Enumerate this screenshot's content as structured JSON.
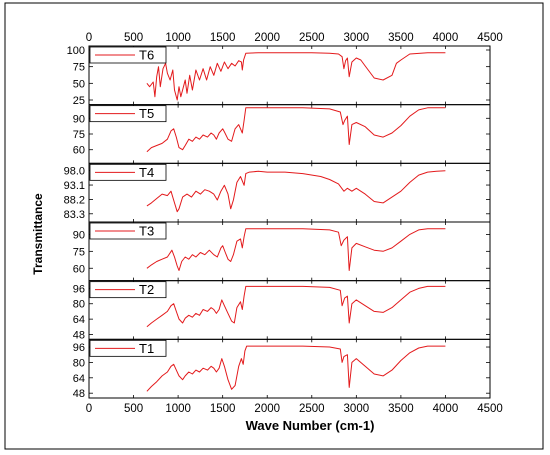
{
  "chart_data": {
    "type": "line",
    "xlabel": "Wave Number (cm-1)",
    "ylabel": "Transmittance",
    "xlim": [
      0,
      4500
    ],
    "x_ticks": [
      "0",
      "500",
      "1000",
      "1500",
      "2000",
      "2500",
      "3000",
      "3500",
      "4000",
      "4500"
    ],
    "line_color": "#e31a1c",
    "panels": [
      {
        "name": "T6",
        "ylim": [
          18,
          106
        ],
        "y_ticks": [
          "100",
          "75",
          "50",
          "25"
        ],
        "y_tick_values": [
          100,
          75,
          50,
          25
        ],
        "points": [
          [
            650,
            50
          ],
          [
            680,
            45
          ],
          [
            720,
            52
          ],
          [
            740,
            30
          ],
          [
            760,
            60
          ],
          [
            780,
            75
          ],
          [
            800,
            45
          ],
          [
            830,
            72
          ],
          [
            860,
            80
          ],
          [
            880,
            65
          ],
          [
            910,
            55
          ],
          [
            940,
            70
          ],
          [
            960,
            40
          ],
          [
            990,
            25
          ],
          [
            1010,
            45
          ],
          [
            1030,
            30
          ],
          [
            1050,
            40
          ],
          [
            1080,
            55
          ],
          [
            1100,
            35
          ],
          [
            1130,
            62
          ],
          [
            1160,
            40
          ],
          [
            1200,
            70
          ],
          [
            1240,
            55
          ],
          [
            1280,
            72
          ],
          [
            1320,
            55
          ],
          [
            1360,
            75
          ],
          [
            1400,
            62
          ],
          [
            1440,
            80
          ],
          [
            1480,
            68
          ],
          [
            1520,
            82
          ],
          [
            1560,
            72
          ],
          [
            1600,
            80
          ],
          [
            1640,
            76
          ],
          [
            1680,
            84
          ],
          [
            1710,
            82
          ],
          [
            1720,
            70
          ],
          [
            1735,
            85
          ],
          [
            1760,
            95
          ],
          [
            1900,
            96
          ],
          [
            2200,
            96
          ],
          [
            2500,
            96
          ],
          [
            2700,
            95
          ],
          [
            2800,
            94
          ],
          [
            2840,
            90
          ],
          [
            2860,
            72
          ],
          [
            2880,
            84
          ],
          [
            2900,
            88
          ],
          [
            2920,
            60
          ],
          [
            2950,
            82
          ],
          [
            3000,
            88
          ],
          [
            3050,
            85
          ],
          [
            3100,
            76
          ],
          [
            3200,
            58
          ],
          [
            3300,
            55
          ],
          [
            3400,
            62
          ],
          [
            3450,
            80
          ],
          [
            3500,
            85
          ],
          [
            3600,
            94
          ],
          [
            3800,
            96
          ],
          [
            4000,
            96
          ]
        ]
      },
      {
        "name": "T5",
        "ylim": [
          47,
          103
        ],
        "y_ticks": [
          "90",
          "75",
          "60"
        ],
        "y_tick_values": [
          90,
          75,
          60
        ],
        "points": [
          [
            650,
            58
          ],
          [
            700,
            62
          ],
          [
            760,
            64
          ],
          [
            820,
            66
          ],
          [
            880,
            70
          ],
          [
            920,
            78
          ],
          [
            950,
            80
          ],
          [
            980,
            72
          ],
          [
            1010,
            62
          ],
          [
            1050,
            60
          ],
          [
            1080,
            64
          ],
          [
            1120,
            70
          ],
          [
            1160,
            68
          ],
          [
            1200,
            72
          ],
          [
            1240,
            70
          ],
          [
            1280,
            74
          ],
          [
            1330,
            72
          ],
          [
            1370,
            76
          ],
          [
            1400,
            74
          ],
          [
            1430,
            70
          ],
          [
            1460,
            76
          ],
          [
            1500,
            80
          ],
          [
            1520,
            77
          ],
          [
            1560,
            70
          ],
          [
            1600,
            68
          ],
          [
            1640,
            80
          ],
          [
            1680,
            84
          ],
          [
            1720,
            76
          ],
          [
            1740,
            88
          ],
          [
            1760,
            100
          ],
          [
            2000,
            100
          ],
          [
            2400,
            100
          ],
          [
            2700,
            99
          ],
          [
            2820,
            96
          ],
          [
            2850,
            84
          ],
          [
            2870,
            88
          ],
          [
            2900,
            92
          ],
          [
            2920,
            65
          ],
          [
            2950,
            84
          ],
          [
            3000,
            86
          ],
          [
            3100,
            82
          ],
          [
            3200,
            74
          ],
          [
            3300,
            72
          ],
          [
            3400,
            76
          ],
          [
            3500,
            83
          ],
          [
            3600,
            92
          ],
          [
            3700,
            98
          ],
          [
            3800,
            100
          ],
          [
            4000,
            100
          ]
        ]
      },
      {
        "name": "T4",
        "ylim": [
          80.5,
          100.5
        ],
        "y_ticks": [
          "98.0",
          "93.1",
          "88.2",
          "83.3"
        ],
        "y_tick_values": [
          98.0,
          93.1,
          88.2,
          83.3
        ],
        "points": [
          [
            650,
            86
          ],
          [
            700,
            87
          ],
          [
            760,
            88.5
          ],
          [
            820,
            90
          ],
          [
            880,
            89.5
          ],
          [
            920,
            91
          ],
          [
            960,
            87
          ],
          [
            990,
            84
          ],
          [
            1010,
            85
          ],
          [
            1050,
            89
          ],
          [
            1100,
            90
          ],
          [
            1150,
            89
          ],
          [
            1200,
            91
          ],
          [
            1250,
            90
          ],
          [
            1300,
            91.5
          ],
          [
            1350,
            91
          ],
          [
            1400,
            90
          ],
          [
            1440,
            88
          ],
          [
            1480,
            91
          ],
          [
            1520,
            93
          ],
          [
            1560,
            90
          ],
          [
            1590,
            85
          ],
          [
            1620,
            88
          ],
          [
            1660,
            94
          ],
          [
            1700,
            96
          ],
          [
            1740,
            93
          ],
          [
            1760,
            97
          ],
          [
            1800,
            97.5
          ],
          [
            1900,
            97.8
          ],
          [
            2000,
            97.5
          ],
          [
            2200,
            97.5
          ],
          [
            2400,
            97
          ],
          [
            2600,
            96
          ],
          [
            2700,
            95
          ],
          [
            2800,
            93.5
          ],
          [
            2860,
            91
          ],
          [
            2900,
            92
          ],
          [
            2950,
            91
          ],
          [
            3000,
            92
          ],
          [
            3100,
            90
          ],
          [
            3200,
            87.5
          ],
          [
            3300,
            87
          ],
          [
            3400,
            89
          ],
          [
            3500,
            91
          ],
          [
            3600,
            94
          ],
          [
            3700,
            96.5
          ],
          [
            3800,
            97.5
          ],
          [
            3900,
            97.8
          ],
          [
            4000,
            98
          ]
        ]
      },
      {
        "name": "T3",
        "ylim": [
          49,
          101
        ],
        "y_ticks": [
          "90",
          "75",
          "60"
        ],
        "y_tick_values": [
          90,
          75,
          60
        ],
        "points": [
          [
            650,
            60
          ],
          [
            700,
            63
          ],
          [
            760,
            66
          ],
          [
            820,
            68
          ],
          [
            880,
            70
          ],
          [
            930,
            76
          ],
          [
            960,
            70
          ],
          [
            990,
            62
          ],
          [
            1010,
            58
          ],
          [
            1040,
            66
          ],
          [
            1080,
            70
          ],
          [
            1120,
            68
          ],
          [
            1160,
            72
          ],
          [
            1200,
            70
          ],
          [
            1250,
            74
          ],
          [
            1300,
            72
          ],
          [
            1350,
            76
          ],
          [
            1400,
            72
          ],
          [
            1440,
            70
          ],
          [
            1480,
            78
          ],
          [
            1500,
            80
          ],
          [
            1530,
            74
          ],
          [
            1560,
            68
          ],
          [
            1590,
            66
          ],
          [
            1620,
            72
          ],
          [
            1660,
            84
          ],
          [
            1700,
            86
          ],
          [
            1720,
            78
          ],
          [
            1740,
            88
          ],
          [
            1760,
            95
          ],
          [
            2000,
            95
          ],
          [
            2400,
            95
          ],
          [
            2700,
            94
          ],
          [
            2800,
            92
          ],
          [
            2830,
            80
          ],
          [
            2860,
            85
          ],
          [
            2900,
            88
          ],
          [
            2920,
            58
          ],
          [
            2950,
            78
          ],
          [
            3000,
            82
          ],
          [
            3100,
            79
          ],
          [
            3200,
            76
          ],
          [
            3300,
            75
          ],
          [
            3400,
            78
          ],
          [
            3500,
            84
          ],
          [
            3600,
            90
          ],
          [
            3700,
            94
          ],
          [
            3800,
            95
          ],
          [
            4000,
            95
          ]
        ]
      },
      {
        "name": "T2",
        "ylim": [
          43,
          104
        ],
        "y_ticks": [
          "96",
          "80",
          "64",
          "48"
        ],
        "y_tick_values": [
          96,
          80,
          64,
          48
        ],
        "points": [
          [
            650,
            56
          ],
          [
            700,
            60
          ],
          [
            760,
            64
          ],
          [
            820,
            68
          ],
          [
            880,
            72
          ],
          [
            920,
            78
          ],
          [
            950,
            80
          ],
          [
            980,
            72
          ],
          [
            1010,
            64
          ],
          [
            1050,
            60
          ],
          [
            1080,
            65
          ],
          [
            1120,
            68
          ],
          [
            1160,
            66
          ],
          [
            1200,
            70
          ],
          [
            1240,
            68
          ],
          [
            1280,
            74
          ],
          [
            1330,
            72
          ],
          [
            1370,
            76
          ],
          [
            1400,
            74
          ],
          [
            1430,
            70
          ],
          [
            1460,
            74
          ],
          [
            1490,
            84
          ],
          [
            1520,
            78
          ],
          [
            1560,
            70
          ],
          [
            1600,
            62
          ],
          [
            1630,
            60
          ],
          [
            1660,
            76
          ],
          [
            1700,
            82
          ],
          [
            1720,
            74
          ],
          [
            1740,
            88
          ],
          [
            1760,
            98
          ],
          [
            2000,
            98
          ],
          [
            2400,
            98
          ],
          [
            2700,
            97
          ],
          [
            2820,
            94
          ],
          [
            2840,
            78
          ],
          [
            2870,
            86
          ],
          [
            2900,
            88
          ],
          [
            2920,
            60
          ],
          [
            2950,
            80
          ],
          [
            3000,
            84
          ],
          [
            3100,
            78
          ],
          [
            3200,
            72
          ],
          [
            3300,
            71
          ],
          [
            3400,
            76
          ],
          [
            3500,
            84
          ],
          [
            3600,
            92
          ],
          [
            3700,
            96
          ],
          [
            3800,
            98
          ],
          [
            4000,
            98
          ]
        ]
      },
      {
        "name": "T1",
        "ylim": [
          43,
          104
        ],
        "y_ticks": [
          "96",
          "80",
          "64",
          "48"
        ],
        "y_tick_values": [
          96,
          80,
          64,
          48
        ],
        "points": [
          [
            650,
            50
          ],
          [
            700,
            55
          ],
          [
            760,
            60
          ],
          [
            820,
            66
          ],
          [
            880,
            70
          ],
          [
            920,
            76
          ],
          [
            950,
            78
          ],
          [
            980,
            72
          ],
          [
            1010,
            66
          ],
          [
            1050,
            62
          ],
          [
            1080,
            66
          ],
          [
            1120,
            70
          ],
          [
            1160,
            68
          ],
          [
            1200,
            72
          ],
          [
            1240,
            70
          ],
          [
            1280,
            74
          ],
          [
            1330,
            72
          ],
          [
            1370,
            76
          ],
          [
            1400,
            74
          ],
          [
            1430,
            70
          ],
          [
            1460,
            74
          ],
          [
            1490,
            84
          ],
          [
            1520,
            76
          ],
          [
            1560,
            62
          ],
          [
            1600,
            52
          ],
          [
            1640,
            56
          ],
          [
            1680,
            76
          ],
          [
            1710,
            84
          ],
          [
            1730,
            78
          ],
          [
            1750,
            92
          ],
          [
            1770,
            97
          ],
          [
            2000,
            97
          ],
          [
            2400,
            97
          ],
          [
            2700,
            96
          ],
          [
            2820,
            94
          ],
          [
            2840,
            80
          ],
          [
            2860,
            86
          ],
          [
            2900,
            88
          ],
          [
            2920,
            54
          ],
          [
            2950,
            80
          ],
          [
            3000,
            84
          ],
          [
            3100,
            76
          ],
          [
            3200,
            68
          ],
          [
            3300,
            66
          ],
          [
            3400,
            72
          ],
          [
            3500,
            82
          ],
          [
            3600,
            90
          ],
          [
            3700,
            95
          ],
          [
            3800,
            97
          ],
          [
            4000,
            97
          ]
        ]
      }
    ]
  }
}
